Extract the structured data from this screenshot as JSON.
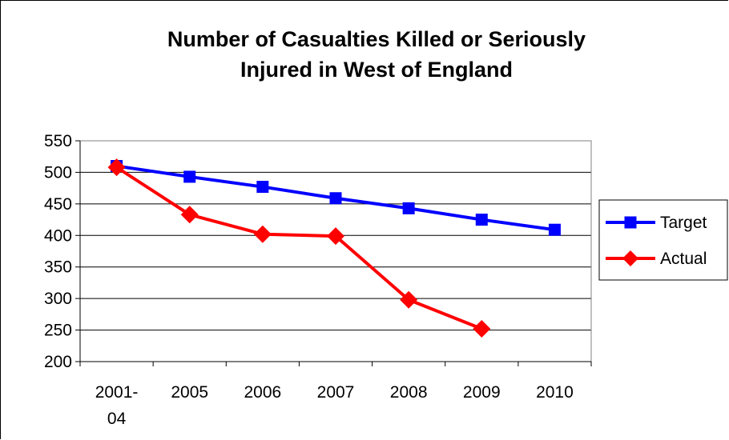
{
  "chart_data": {
    "type": "line",
    "title_line1": "Number of Casualties Killed or Seriously",
    "title_line2": "Injured in West of England",
    "categories": [
      [
        "2001-",
        "04"
      ],
      [
        "2005"
      ],
      [
        "2006"
      ],
      [
        "2007"
      ],
      [
        "2008"
      ],
      [
        "2009"
      ],
      [
        "2010"
      ]
    ],
    "series": [
      {
        "name": "Target",
        "color": "#0000ff",
        "marker": "square",
        "values": [
          510,
          493,
          477,
          459,
          443,
          425,
          409
        ]
      },
      {
        "name": "Actual",
        "color": "#ff0000",
        "marker": "diamond",
        "values": [
          508,
          433,
          402,
          399,
          298,
          252,
          null
        ]
      }
    ],
    "ylim": [
      200,
      550
    ],
    "yticks": [
      200,
      250,
      300,
      350,
      400,
      450,
      500,
      550
    ],
    "grid": true,
    "legend_position": "right"
  }
}
